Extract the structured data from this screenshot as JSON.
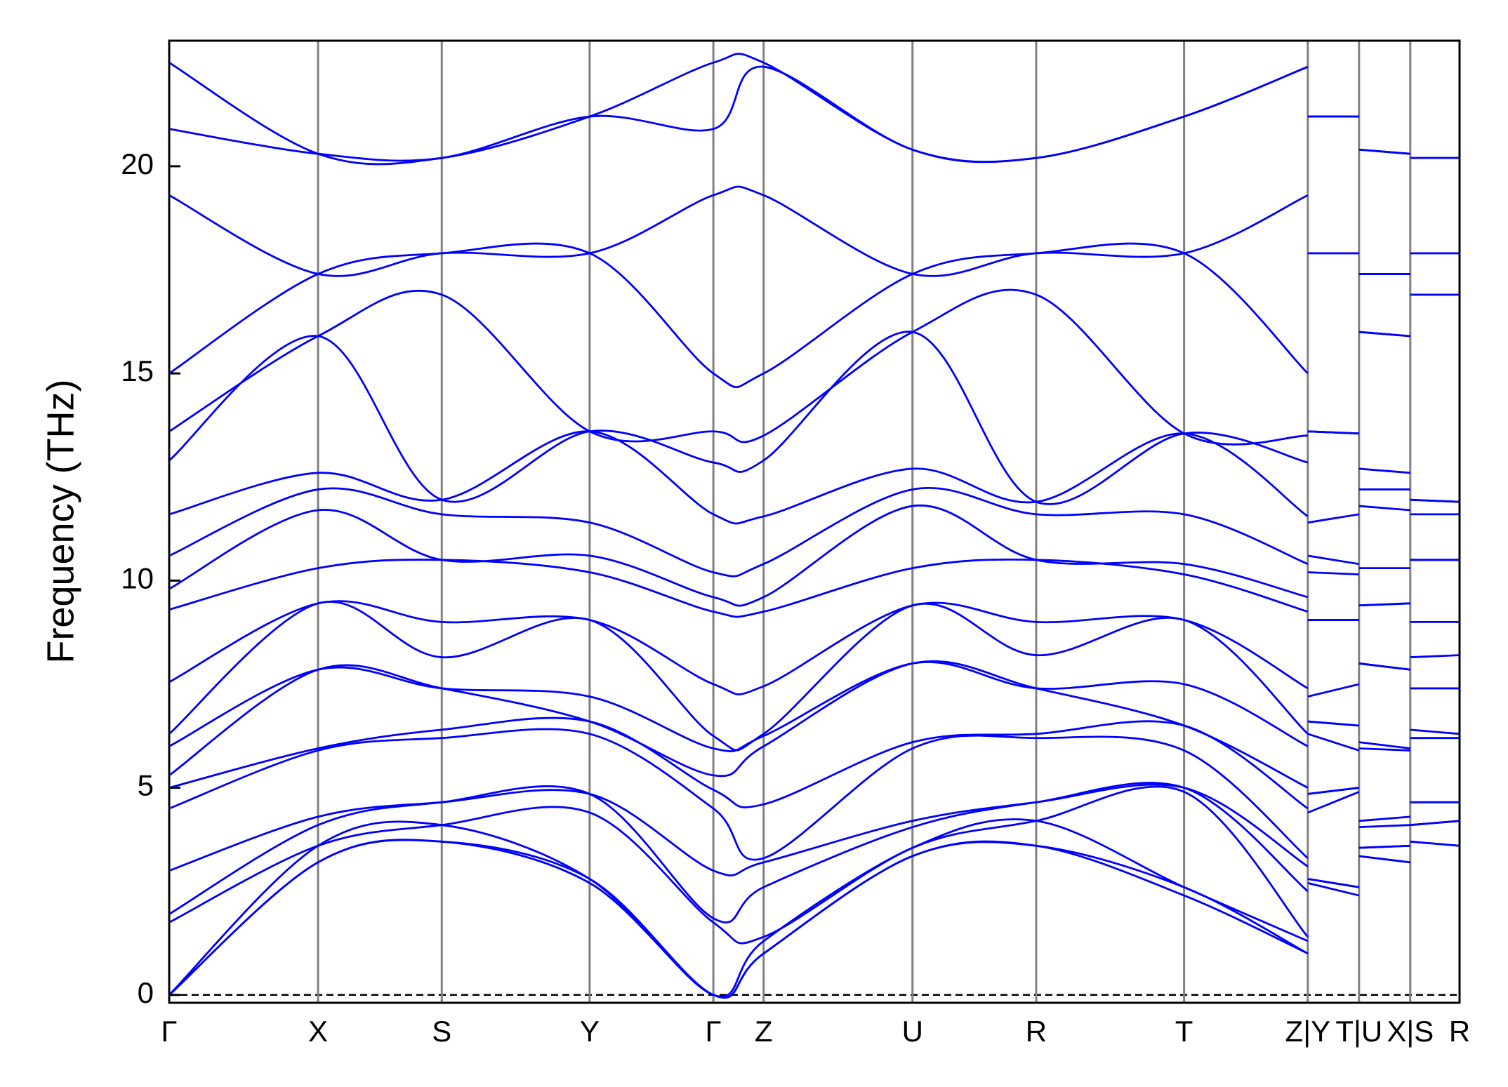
{
  "chart_data": {
    "type": "line",
    "y_label": "Frequency (THz)",
    "color": "#0000ff",
    "grid_color": "#808080",
    "x": [
      0,
      154,
      282,
      435,
      563,
      615,
      769,
      897,
      1050,
      1178,
      1178,
      1178,
      1231,
      1231,
      1231,
      1284,
      1284,
      1284,
      1335
    ],
    "xlim": [
      0,
      1335
    ],
    "xticks": [
      {
        "value": 0,
        "label": "Γ"
      },
      {
        "value": 154,
        "label": "X"
      },
      {
        "value": 282,
        "label": "S"
      },
      {
        "value": 435,
        "label": "Y"
      },
      {
        "value": 563,
        "label": "Γ"
      },
      {
        "value": 615,
        "label": "Z"
      },
      {
        "value": 769,
        "label": "U"
      },
      {
        "value": 897,
        "label": "R"
      },
      {
        "value": 1050,
        "label": "T"
      },
      {
        "value": 1178,
        "label": "Z|Y"
      },
      {
        "value": 1231,
        "label": "T|U"
      },
      {
        "value": 1284,
        "label": "X|S"
      },
      {
        "value": 1335,
        "label": "R"
      }
    ],
    "ylim": [
      -0.19,
      23.03
    ],
    "yticks": [
      0,
      5,
      10,
      15,
      20
    ],
    "zero_line": true,
    "series": [
      {
        "values": [
          0,
          3.2,
          3.7,
          2.7,
          0,
          1.0,
          3.35,
          3.6,
          2.4,
          1.0,
          null,
          2.7,
          2.4,
          null,
          3.35,
          3.2,
          null,
          3.7,
          3.6
        ]
      },
      {
        "values": [
          0,
          3.2,
          3.7,
          2.8,
          0,
          1.0,
          3.35,
          3.6,
          2.6,
          1.0,
          null,
          2.8,
          2.6,
          null,
          3.35,
          3.2,
          null,
          3.7,
          3.6
        ]
      },
      {
        "values": [
          0,
          3.6,
          4.1,
          2.8,
          0,
          1.3,
          3.55,
          4.2,
          2.6,
          1.3,
          null,
          2.8,
          2.6,
          null,
          3.55,
          3.6,
          null,
          4.1,
          4.2
        ]
      },
      {
        "values": [
          1.75,
          3.6,
          4.1,
          4.4,
          1.75,
          1.4,
          3.55,
          4.2,
          4.9,
          1.4,
          null,
          4.4,
          4.9,
          null,
          3.55,
          3.6,
          null,
          4.1,
          4.2
        ]
      },
      {
        "values": [
          1.95,
          4.1,
          4.65,
          4.85,
          1.85,
          2.6,
          4.05,
          4.65,
          5.0,
          2.5,
          null,
          4.85,
          5.0,
          null,
          4.05,
          4.1,
          null,
          4.65,
          4.65
        ]
      },
      {
        "values": [
          3.0,
          4.3,
          4.65,
          4.85,
          3.0,
          3.2,
          4.2,
          4.65,
          5.0,
          3.1,
          null,
          4.85,
          5.0,
          null,
          4.2,
          4.3,
          null,
          4.65,
          4.65
        ]
      },
      {
        "values": [
          4.5,
          5.9,
          6.2,
          6.3,
          4.5,
          3.3,
          5.95,
          6.2,
          5.9,
          3.3,
          null,
          6.3,
          5.9,
          null,
          5.95,
          5.9,
          null,
          6.2,
          6.2
        ]
      },
      {
        "values": [
          5.0,
          5.95,
          6.4,
          6.6,
          4.95,
          4.6,
          6.1,
          6.3,
          6.5,
          4.5,
          null,
          6.6,
          6.5,
          null,
          6.1,
          5.95,
          null,
          6.4,
          6.3
        ]
      },
      {
        "values": [
          5.3,
          7.85,
          7.4,
          6.6,
          5.3,
          6.0,
          8.0,
          7.4,
          6.5,
          5.0,
          null,
          6.6,
          6.5,
          null,
          8.0,
          7.85,
          null,
          7.4,
          7.4
        ]
      },
      {
        "values": [
          6.0,
          7.85,
          7.4,
          7.2,
          5.95,
          6.25,
          8.0,
          7.4,
          7.5,
          6.0,
          null,
          7.2,
          7.5,
          null,
          8.0,
          7.85,
          null,
          7.4,
          7.4
        ]
      },
      {
        "values": [
          6.3,
          9.45,
          8.15,
          9.05,
          6.25,
          6.3,
          9.4,
          8.2,
          9.05,
          6.3,
          null,
          9.05,
          9.05,
          null,
          9.4,
          9.45,
          null,
          8.15,
          8.2
        ]
      },
      {
        "values": [
          7.55,
          9.45,
          9.0,
          9.05,
          7.5,
          7.45,
          9.4,
          9.0,
          9.05,
          7.4,
          null,
          9.05,
          9.05,
          null,
          9.4,
          9.45,
          null,
          9.0,
          9.0
        ]
      },
      {
        "values": [
          9.3,
          10.3,
          10.5,
          10.2,
          9.25,
          9.25,
          10.3,
          10.5,
          10.15,
          9.25,
          null,
          10.2,
          10.15,
          null,
          10.3,
          10.3,
          null,
          10.5,
          10.5
        ]
      },
      {
        "values": [
          9.8,
          11.7,
          10.5,
          10.6,
          9.6,
          9.6,
          11.8,
          10.5,
          10.4,
          9.6,
          null,
          10.6,
          10.4,
          null,
          11.8,
          11.7,
          null,
          10.5,
          10.5
        ]
      },
      {
        "values": [
          10.6,
          12.2,
          11.6,
          11.4,
          10.2,
          10.4,
          12.2,
          11.6,
          11.6,
          10.4,
          null,
          11.4,
          11.6,
          null,
          12.2,
          12.2,
          null,
          11.6,
          11.6
        ]
      },
      {
        "values": [
          11.6,
          12.6,
          11.95,
          13.6,
          11.6,
          11.55,
          12.7,
          11.9,
          13.55,
          11.55,
          null,
          13.6,
          13.55,
          null,
          12.7,
          12.6,
          null,
          11.95,
          11.9
        ]
      },
      {
        "values": [
          12.9,
          15.9,
          11.95,
          13.6,
          12.85,
          12.9,
          16.0,
          11.9,
          13.55,
          12.85,
          null,
          13.6,
          13.55,
          null,
          16.0,
          15.9,
          null,
          11.95,
          11.9
        ]
      },
      {
        "values": [
          13.6,
          15.9,
          16.9,
          13.6,
          13.6,
          13.5,
          16.0,
          16.9,
          13.55,
          13.5,
          null,
          13.6,
          13.55,
          null,
          16.0,
          15.9,
          null,
          16.9,
          16.9
        ]
      },
      {
        "values": [
          15.0,
          17.4,
          17.9,
          17.9,
          15.0,
          15.0,
          17.4,
          17.9,
          17.9,
          15.0,
          null,
          17.9,
          17.9,
          null,
          17.4,
          17.4,
          null,
          17.9,
          17.9
        ]
      },
      {
        "values": [
          19.3,
          17.4,
          17.9,
          17.9,
          19.3,
          19.3,
          17.4,
          17.9,
          17.9,
          19.3,
          null,
          17.9,
          17.9,
          null,
          17.4,
          17.4,
          null,
          17.9,
          17.9
        ]
      },
      {
        "values": [
          20.9,
          20.3,
          20.2,
          21.2,
          20.9,
          22.4,
          20.4,
          20.2,
          21.2,
          22.4,
          null,
          21.2,
          21.2,
          null,
          20.4,
          20.3,
          null,
          20.2,
          20.2
        ]
      },
      {
        "values": [
          22.5,
          20.3,
          20.2,
          21.2,
          22.5,
          22.5,
          20.4,
          20.2,
          21.2,
          22.4,
          null,
          21.2,
          21.2,
          null,
          20.4,
          20.3,
          null,
          20.2,
          20.2
        ]
      }
    ]
  }
}
